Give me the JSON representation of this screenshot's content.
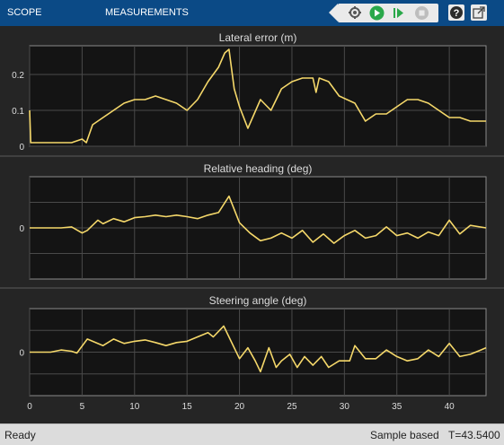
{
  "toolstrip": {
    "tabs": [
      "SCOPE",
      "MEASUREMENTS"
    ]
  },
  "toolbar": {
    "buttons": [
      "settings-icon",
      "run-icon",
      "step-forward-icon",
      "stop-icon"
    ],
    "help_icon": "help-icon",
    "undock_icon": "undock-icon"
  },
  "status": {
    "ready": "Ready",
    "mode": "Sample based",
    "time": "T=43.5400"
  },
  "colors": {
    "trace": "#f5d86a",
    "axes_bg": "#141414",
    "grid": "#4a4a4a",
    "toolstrip": "#0b4a86"
  },
  "chart_data": [
    {
      "type": "line",
      "title": "Lateral error (m)",
      "xlim": [
        0,
        43.5
      ],
      "ylim": [
        0,
        0.28
      ],
      "yticks": [
        0,
        0.1,
        0.2
      ],
      "ytick_labels": [
        "0",
        "0.1",
        "0.2"
      ],
      "xticks": [
        0,
        5,
        10,
        15,
        20,
        25,
        30,
        35,
        40
      ],
      "series": [
        {
          "x": [
            0,
            0.1,
            0.2,
            4,
            5,
            5.4,
            6,
            7,
            8,
            9,
            10,
            11,
            12,
            13,
            14,
            15,
            16,
            17,
            18,
            18.6,
            19,
            19.5,
            20,
            20.8,
            21.4,
            22,
            23,
            24,
            25,
            26,
            27,
            27.3,
            27.6,
            28.5,
            29.5,
            31,
            32,
            33,
            34,
            35,
            36,
            37,
            38,
            39,
            40,
            41,
            42,
            43.5
          ],
          "y": [
            0.1,
            0.01,
            0.01,
            0.01,
            0.02,
            0.01,
            0.06,
            0.08,
            0.1,
            0.12,
            0.13,
            0.13,
            0.14,
            0.13,
            0.12,
            0.1,
            0.13,
            0.18,
            0.22,
            0.26,
            0.27,
            0.16,
            0.11,
            0.05,
            0.09,
            0.13,
            0.1,
            0.16,
            0.18,
            0.19,
            0.19,
            0.15,
            0.19,
            0.18,
            0.14,
            0.12,
            0.07,
            0.09,
            0.09,
            0.11,
            0.13,
            0.13,
            0.12,
            0.1,
            0.08,
            0.08,
            0.07,
            0.07
          ]
        }
      ]
    },
    {
      "type": "line",
      "title": "Relative heading (deg)",
      "xlim": [
        0,
        43.5
      ],
      "ylim": [
        -1,
        1
      ],
      "yticks": [
        0
      ],
      "ytick_labels": [
        "0"
      ],
      "xticks": [
        0,
        5,
        10,
        15,
        20,
        25,
        30,
        35,
        40
      ],
      "series": [
        {
          "x": [
            0,
            3,
            4,
            5,
            5.5,
            6.5,
            7,
            8,
            9,
            10,
            11,
            12,
            13,
            14,
            15,
            16,
            17,
            18,
            19,
            20,
            21,
            22,
            23,
            24,
            25,
            26,
            27,
            28,
            29,
            30,
            31,
            32,
            33,
            34,
            35,
            36,
            37,
            38,
            39,
            40,
            41,
            42,
            43.5
          ],
          "y": [
            0,
            0,
            0.02,
            -0.1,
            -0.05,
            0.15,
            0.08,
            0.18,
            0.12,
            0.2,
            0.22,
            0.25,
            0.22,
            0.25,
            0.22,
            0.18,
            0.25,
            0.3,
            0.62,
            0.1,
            -0.1,
            -0.25,
            -0.2,
            -0.1,
            -0.2,
            -0.05,
            -0.28,
            -0.12,
            -0.3,
            -0.15,
            -0.05,
            -0.2,
            -0.15,
            0.02,
            -0.15,
            -0.1,
            -0.2,
            -0.08,
            -0.15,
            0.15,
            -0.12,
            0.05,
            0
          ]
        }
      ]
    },
    {
      "type": "line",
      "title": "Steering angle (deg)",
      "xlim": [
        0,
        43.5
      ],
      "ylim": [
        -1,
        1
      ],
      "yticks": [
        0
      ],
      "ytick_labels": [
        "0"
      ],
      "xticks": [
        0,
        5,
        10,
        15,
        20,
        25,
        30,
        35,
        40
      ],
      "xtick_labels": [
        "0",
        "5",
        "10",
        "15",
        "20",
        "25",
        "30",
        "35",
        "40"
      ],
      "series": [
        {
          "x": [
            0,
            2,
            3,
            4,
            4.5,
            5.5,
            6,
            7,
            8,
            9,
            10,
            11,
            12,
            13,
            14,
            15,
            16,
            17,
            17.5,
            18.5,
            19.2,
            20,
            20.8,
            21.5,
            22,
            22.8,
            23.5,
            24,
            24.8,
            25.5,
            26.2,
            27,
            27.8,
            28.5,
            29.5,
            30.5,
            31,
            32,
            33,
            34,
            35,
            36,
            37,
            38,
            39,
            40,
            41,
            42,
            43,
            43.5
          ],
          "y": [
            0,
            0,
            0.05,
            0.02,
            -0.02,
            0.3,
            0.25,
            0.15,
            0.3,
            0.2,
            0.25,
            0.28,
            0.22,
            0.15,
            0.22,
            0.25,
            0.35,
            0.45,
            0.35,
            0.6,
            0.25,
            -0.15,
            0.1,
            -0.2,
            -0.45,
            0.1,
            -0.35,
            -0.2,
            -0.05,
            -0.35,
            -0.1,
            -0.3,
            -0.1,
            -0.35,
            -0.2,
            -0.2,
            0.15,
            -0.15,
            -0.15,
            0.05,
            -0.1,
            -0.2,
            -0.15,
            0.05,
            -0.1,
            0.2,
            -0.1,
            -0.05,
            0.05,
            0.1
          ]
        }
      ]
    }
  ]
}
